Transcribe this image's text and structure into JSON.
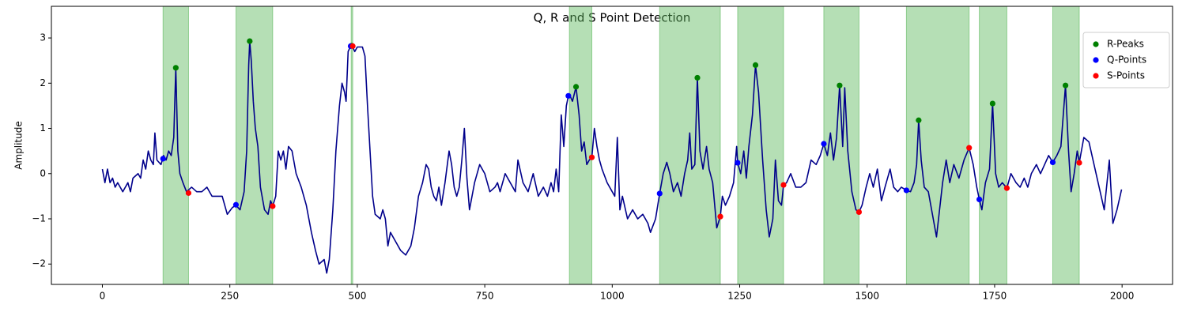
{
  "chart_data": {
    "type": "line",
    "title": "Q, R and S Point Detection",
    "y_label": "Amplitude",
    "xlim": [
      -100,
      2099
    ],
    "ylim": [
      -2.45,
      3.7
    ],
    "xticks": [
      0,
      250,
      500,
      750,
      1000,
      1250,
      1500,
      1750,
      2000
    ],
    "yticks": [
      {
        "value": -2,
        "label": "−2"
      },
      {
        "value": -1,
        "label": "−1"
      },
      0,
      1,
      2,
      3
    ],
    "legend": "upper right",
    "spans": [
      [
        119,
        169
      ],
      [
        262,
        334
      ],
      [
        488,
        491
      ],
      [
        916,
        960
      ],
      [
        1093,
        1212
      ],
      [
        1246,
        1336
      ],
      [
        1415,
        1484
      ],
      [
        1577,
        1700
      ],
      [
        1720,
        1774
      ],
      [
        1864,
        1916
      ]
    ],
    "span_color": "#5cb85c",
    "series": [
      {
        "type": "line",
        "color": "#00008b",
        "x": [
          0,
          5,
          10,
          15,
          20,
          25,
          30,
          40,
          50,
          55,
          60,
          70,
          75,
          80,
          85,
          90,
          95,
          100,
          103,
          107,
          115,
          120,
          125,
          130,
          135,
          140,
          144,
          148,
          152,
          158,
          165,
          175,
          185,
          195,
          205,
          215,
          225,
          235,
          245,
          255,
          262,
          270,
          278,
          283,
          287,
          289,
          292,
          296,
          300,
          305,
          310,
          318,
          325,
          330,
          334,
          340,
          345,
          350,
          355,
          360,
          365,
          372,
          380,
          390,
          400,
          410,
          418,
          425,
          435,
          440,
          445,
          452,
          458,
          465,
          470,
          475,
          478,
          482,
          487,
          491,
          495,
          500,
          510,
          515,
          520,
          525,
          530,
          535,
          545,
          550,
          555,
          560,
          565,
          575,
          585,
          595,
          605,
          612,
          620,
          628,
          635,
          640,
          645,
          650,
          655,
          660,
          665,
          672,
          680,
          685,
          690,
          695,
          700,
          705,
          710,
          715,
          720,
          730,
          740,
          750,
          760,
          770,
          775,
          780,
          790,
          800,
          810,
          815,
          825,
          835,
          845,
          855,
          865,
          873,
          880,
          885,
          890,
          895,
          900,
          905,
          910,
          914,
          918,
          922,
          929,
          935,
          940,
          945,
          950,
          955,
          960,
          965,
          970,
          975,
          980,
          990,
          1000,
          1005,
          1010,
          1015,
          1020,
          1030,
          1040,
          1050,
          1060,
          1070,
          1075,
          1085,
          1093,
          1100,
          1107,
          1113,
          1120,
          1128,
          1135,
          1142,
          1148,
          1152,
          1156,
          1162,
          1167,
          1172,
          1178,
          1185,
          1190,
          1197,
          1205,
          1212,
          1216,
          1222,
          1230,
          1238,
          1244,
          1246,
          1252,
          1258,
          1263,
          1268,
          1275,
          1281,
          1287,
          1295,
          1302,
          1308,
          1315,
          1320,
          1326,
          1332,
          1336,
          1342,
          1350,
          1360,
          1370,
          1380,
          1390,
          1400,
          1408,
          1415,
          1422,
          1428,
          1434,
          1440,
          1446,
          1452,
          1456,
          1462,
          1470,
          1478,
          1484,
          1490,
          1498,
          1505,
          1512,
          1520,
          1528,
          1535,
          1545,
          1552,
          1560,
          1567,
          1577,
          1585,
          1592,
          1597,
          1601,
          1606,
          1612,
          1620,
          1628,
          1636,
          1642,
          1648,
          1655,
          1662,
          1670,
          1680,
          1690,
          1700,
          1708,
          1715,
          1720,
          1725,
          1732,
          1740,
          1746,
          1752,
          1758,
          1765,
          1774,
          1782,
          1792,
          1800,
          1808,
          1815,
          1822,
          1832,
          1840,
          1848,
          1856,
          1864,
          1872,
          1880,
          1889,
          1895,
          1900,
          1906,
          1912,
          1916,
          1925,
          1935,
          1945,
          1955,
          1965,
          1975,
          1982,
          1990,
          1999
        ],
        "values": [
          0.1,
          -0.2,
          0.1,
          -0.2,
          -0.1,
          -0.3,
          -0.2,
          -0.4,
          -0.2,
          -0.4,
          -0.1,
          0.0,
          -0.1,
          0.3,
          0.1,
          0.5,
          0.3,
          0.2,
          0.9,
          0.3,
          0.2,
          0.4,
          0.3,
          0.5,
          0.4,
          0.8,
          2.34,
          0.5,
          0.0,
          -0.2,
          -0.4,
          -0.3,
          -0.4,
          -0.4,
          -0.3,
          -0.5,
          -0.5,
          -0.5,
          -0.9,
          -0.75,
          -0.7,
          -0.8,
          -0.4,
          0.5,
          2.4,
          2.93,
          2.5,
          1.6,
          1.0,
          0.6,
          -0.3,
          -0.8,
          -0.9,
          -0.6,
          -0.72,
          -0.5,
          0.5,
          0.3,
          0.5,
          0.1,
          0.6,
          0.5,
          0.0,
          -0.3,
          -0.7,
          -1.3,
          -1.7,
          -2.0,
          -1.9,
          -2.2,
          -1.9,
          -0.8,
          0.5,
          1.5,
          2.0,
          1.8,
          1.6,
          2.7,
          2.82,
          2.8,
          2.7,
          2.8,
          2.8,
          2.6,
          1.5,
          0.5,
          -0.5,
          -0.9,
          -1.0,
          -0.8,
          -1.0,
          -1.6,
          -1.3,
          -1.5,
          -1.7,
          -1.8,
          -1.6,
          -1.2,
          -0.5,
          -0.2,
          0.2,
          0.1,
          -0.3,
          -0.5,
          -0.6,
          -0.3,
          -0.7,
          -0.2,
          0.5,
          0.2,
          -0.3,
          -0.5,
          -0.3,
          0.3,
          1.0,
          -0.1,
          -0.8,
          -0.2,
          0.2,
          0.0,
          -0.4,
          -0.3,
          -0.2,
          -0.4,
          0.0,
          -0.2,
          -0.4,
          0.3,
          -0.2,
          -0.4,
          0.0,
          -0.5,
          -0.3,
          -0.5,
          -0.2,
          -0.4,
          0.1,
          -0.4,
          1.3,
          0.6,
          1.5,
          1.72,
          1.7,
          1.6,
          1.92,
          1.3,
          0.5,
          0.7,
          0.2,
          0.3,
          0.36,
          1.0,
          0.6,
          0.3,
          0.1,
          -0.2,
          -0.4,
          -0.5,
          0.8,
          -0.8,
          -0.5,
          -1.0,
          -0.8,
          -1.0,
          -0.9,
          -1.1,
          -1.3,
          -1.0,
          -0.44,
          0.0,
          0.25,
          0.0,
          -0.4,
          -0.2,
          -0.5,
          0.0,
          0.3,
          0.9,
          0.1,
          0.2,
          2.12,
          0.5,
          0.1,
          0.6,
          0.1,
          -0.2,
          -1.2,
          -0.95,
          -0.5,
          -0.7,
          -0.5,
          -0.2,
          0.6,
          0.24,
          0.0,
          0.5,
          -0.1,
          0.6,
          1.3,
          2.4,
          1.8,
          0.3,
          -0.8,
          -1.4,
          -1.0,
          0.3,
          -0.6,
          -0.7,
          -0.25,
          -0.2,
          0.0,
          -0.3,
          -0.3,
          -0.2,
          0.3,
          0.2,
          0.4,
          0.66,
          0.4,
          0.9,
          0.3,
          0.8,
          1.95,
          0.6,
          1.9,
          0.5,
          -0.4,
          -0.8,
          -0.85,
          -0.7,
          -0.3,
          0.0,
          -0.3,
          0.1,
          -0.6,
          -0.3,
          0.1,
          -0.3,
          -0.4,
          -0.3,
          -0.37,
          -0.4,
          -0.2,
          0.2,
          1.18,
          0.3,
          -0.3,
          -0.4,
          -0.9,
          -1.4,
          -0.8,
          -0.2,
          0.3,
          -0.2,
          0.2,
          -0.1,
          0.3,
          0.57,
          0.2,
          -0.3,
          -0.57,
          -0.8,
          -0.2,
          0.1,
          1.55,
          0.0,
          -0.3,
          -0.2,
          -0.32,
          0.0,
          -0.2,
          -0.3,
          -0.1,
          -0.3,
          0.0,
          0.2,
          0.0,
          0.2,
          0.4,
          0.25,
          0.4,
          0.6,
          1.95,
          0.5,
          -0.4,
          0.0,
          0.5,
          0.24,
          0.8,
          0.7,
          0.2,
          -0.3,
          -0.8,
          0.3,
          -1.1,
          -0.8,
          -0.35
        ]
      },
      {
        "type": "scatter",
        "name": "R-Peaks",
        "color": "#008000",
        "x": [
          144,
          289,
          489,
          929,
          1167,
          1281,
          1446,
          1601,
          1746,
          1889
        ],
        "values": [
          2.34,
          2.93,
          2.83,
          1.92,
          2.12,
          2.4,
          1.95,
          1.18,
          1.55,
          1.95
        ]
      },
      {
        "type": "scatter",
        "name": "Q-Points",
        "color": "#0000ff",
        "x": [
          119,
          262,
          487,
          914,
          1093,
          1246,
          1415,
          1577,
          1720,
          1864
        ],
        "values": [
          0.33,
          -0.69,
          2.82,
          1.72,
          -0.44,
          0.24,
          0.66,
          -0.37,
          -0.57,
          0.25
        ]
      },
      {
        "type": "scatter",
        "name": "S-Points",
        "color": "#ff0000",
        "x": [
          169,
          334,
          491,
          960,
          1212,
          1336,
          1484,
          1700,
          1774,
          1916
        ],
        "values": [
          -0.43,
          -0.72,
          2.82,
          0.36,
          -0.95,
          -0.25,
          -0.85,
          0.57,
          -0.32,
          0.24
        ]
      }
    ]
  }
}
